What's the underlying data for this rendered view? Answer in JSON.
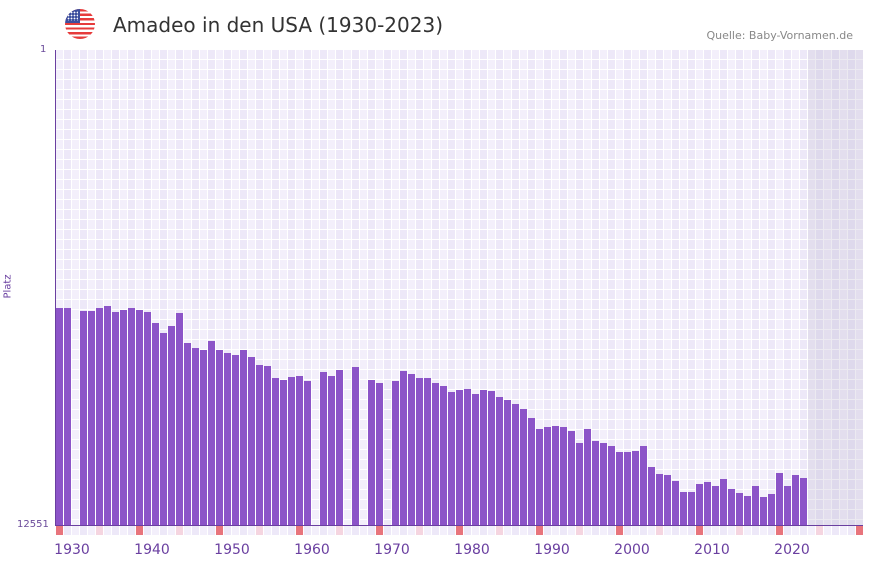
{
  "header": {
    "title": "Amadeo in den USA (1930-2023)",
    "source": "Quelle: Baby-Vornamen.de",
    "flag_icon": "us-flag-icon"
  },
  "colors": {
    "bar": "#8c54c8",
    "decade_marker": "#e8747c",
    "half_decade_marker": "#f5d5e0",
    "axis": "#6a3fa0"
  },
  "chart_data": {
    "type": "bar",
    "title": "Amadeo in den USA (1930-2023)",
    "xlabel": "",
    "ylabel": "Platz",
    "ylim": [
      1,
      12551
    ],
    "y_inverted": true,
    "y_tick_labels": [
      "1",
      "12551"
    ],
    "x_range": [
      1930,
      2030
    ],
    "x_tick_labels": [
      "1930",
      "1940",
      "1950",
      "1960",
      "1970",
      "1980",
      "1990",
      "2000",
      "2010",
      "2020"
    ],
    "x_ticks": [
      1930,
      1940,
      1950,
      1960,
      1970,
      1980,
      1990,
      2000,
      2010,
      2020
    ],
    "shaded_from_year": 2024,
    "start_year": 1930,
    "values": [
      6816,
      6816,
      null,
      6896,
      6896,
      6816,
      6764,
      6922,
      6870,
      6816,
      6870,
      6922,
      7213,
      7477,
      7292,
      6949,
      7741,
      7873,
      7926,
      7688,
      7926,
      8005,
      8058,
      7926,
      8111,
      8322,
      8349,
      8666,
      8719,
      8640,
      8613,
      8745,
      null,
      8507,
      8613,
      8454,
      null,
      8375,
      null,
      8719,
      8798,
      null,
      8745,
      8481,
      8560,
      8666,
      8666,
      8798,
      8877,
      9036,
      8983,
      8957,
      9089,
      8983,
      9009,
      9168,
      9247,
      9353,
      9485,
      9723,
      10013,
      9960,
      9934,
      9960,
      10066,
      10383,
      10013,
      10330,
      10383,
      10462,
      10621,
      10621,
      10594,
      10462,
      11017,
      11202,
      11229,
      11387,
      11678,
      11678,
      11466,
      11413,
      11519,
      11334,
      11599,
      11704,
      11784,
      11519,
      11810,
      11731,
      11176,
      11519,
      11229,
      11308
    ]
  }
}
